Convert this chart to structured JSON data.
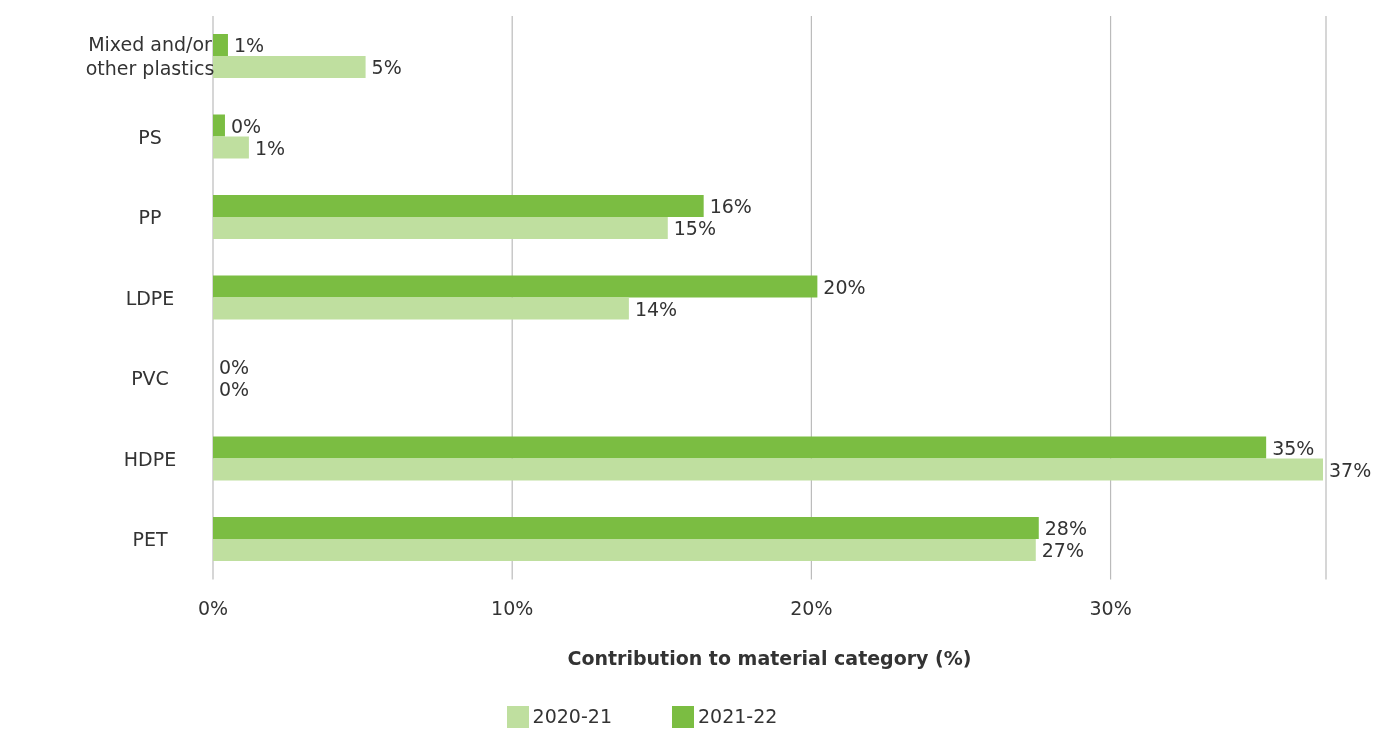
{
  "chart_data": {
    "type": "bar",
    "orientation": "horizontal",
    "xlabel": "Contribution to material category (%)",
    "categories": [
      "Mixed and/or other plastics",
      "PS",
      "PP",
      "LDPE",
      "PVC",
      "HDPE",
      "PET"
    ],
    "series": [
      {
        "name": "2021-22",
        "color": "#7bbd42",
        "values": [
          0.5,
          0.4,
          16.4,
          20.2,
          0,
          35.2,
          27.6
        ],
        "value_labels": [
          "1%",
          "0%",
          "16%",
          "20%",
          "0%",
          "35%",
          "28%"
        ]
      },
      {
        "name": "2020-21",
        "color": "#bfdf9f",
        "values": [
          5.1,
          1.2,
          15.2,
          13.9,
          0,
          37.1,
          27.5
        ],
        "value_labels": [
          "5%",
          "1%",
          "15%",
          "14%",
          "0%",
          "37%",
          "27%"
        ]
      }
    ],
    "xlim": [
      0,
      37.2
    ],
    "xticks": [
      {
        "value": 0,
        "label": "0%"
      },
      {
        "value": 10,
        "label": "10%"
      },
      {
        "value": 20,
        "label": "20%"
      },
      {
        "value": 30,
        "label": "30%"
      }
    ],
    "grid": "x",
    "legend": "bottom"
  }
}
